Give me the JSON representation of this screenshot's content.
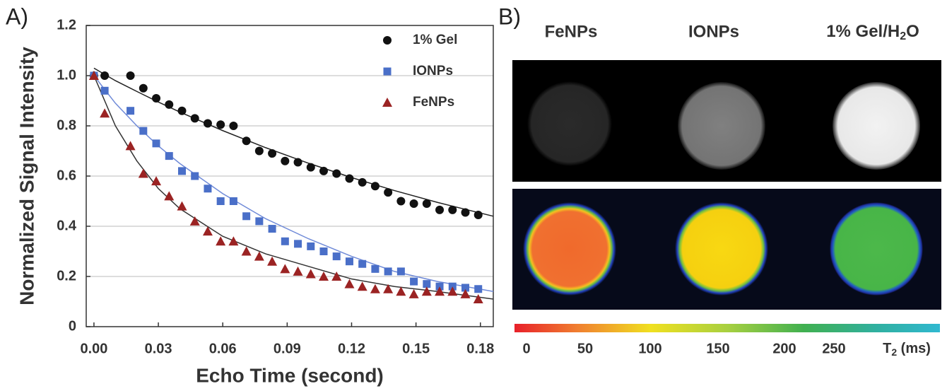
{
  "chart_data": {
    "type": "scatter",
    "panel_label": "A)",
    "xlabel": "Echo Time (second)",
    "ylabel": "Normalized Signal Intensity",
    "xlim": [
      -0.0036,
      0.186
    ],
    "ylim": [
      0,
      1.2
    ],
    "xticks": [
      {
        "value": 0,
        "label": "0.00"
      },
      {
        "value": 0.03,
        "label": "0.03"
      },
      {
        "value": 0.06,
        "label": "0.06"
      },
      {
        "value": 0.09,
        "label": "0.09"
      },
      {
        "value": 0.12,
        "label": "0.12"
      },
      {
        "value": 0.15,
        "label": "0.15"
      },
      {
        "value": 0.18,
        "label": "0.18"
      }
    ],
    "yticks": [
      0,
      0.2,
      0.4,
      0.6,
      0.8,
      {
        "value": 1,
        "label": "1.0"
      },
      1.2
    ],
    "grid": true,
    "legend": "upper right",
    "x": [
      0,
      0.005,
      0.017,
      0.023,
      0.029,
      0.035,
      0.041,
      0.047,
      0.053,
      0.059,
      0.065,
      0.071,
      0.077,
      0.083,
      0.089,
      0.095,
      0.101,
      0.107,
      0.113,
      0.119,
      0.125,
      0.131,
      0.137,
      0.143,
      0.149,
      0.155,
      0.161,
      0.167,
      0.173,
      0.179
    ],
    "fit_x": [
      0,
      0.01,
      0.02,
      0.03,
      0.04,
      0.06,
      0.08,
      0.1,
      0.12,
      0.14,
      0.16,
      0.186
    ],
    "series": [
      {
        "name": "1% Gel",
        "marker": "circle",
        "color": "#111111",
        "fit_color": "#222222",
        "values": [
          1.0,
          1.0,
          1.0,
          0.95,
          0.91,
          0.885,
          0.86,
          0.83,
          0.81,
          0.805,
          0.8,
          0.74,
          0.7,
          0.69,
          0.66,
          0.655,
          0.635,
          0.62,
          0.61,
          0.59,
          0.575,
          0.56,
          0.535,
          0.5,
          0.49,
          0.49,
          0.465,
          0.465,
          0.455,
          0.445
        ],
        "fit": [
          1.03,
          0.98,
          0.937,
          0.895,
          0.855,
          0.781,
          0.713,
          0.651,
          0.594,
          0.542,
          0.495,
          0.44
        ]
      },
      {
        "name": "IONPs",
        "marker": "square",
        "color": "#4a6fc8",
        "fit_color": "#6f8ad8",
        "values": [
          1.0,
          0.94,
          0.86,
          0.78,
          0.73,
          0.68,
          0.62,
          0.6,
          0.55,
          0.5,
          0.5,
          0.44,
          0.42,
          0.39,
          0.34,
          0.33,
          0.32,
          0.3,
          0.28,
          0.26,
          0.25,
          0.23,
          0.22,
          0.22,
          0.18,
          0.17,
          0.16,
          0.16,
          0.155,
          0.15
        ],
        "fit": [
          1.0,
          0.89,
          0.8,
          0.72,
          0.65,
          0.53,
          0.43,
          0.35,
          0.28,
          0.22,
          0.18,
          0.14
        ]
      },
      {
        "name": "FeNPs",
        "marker": "triangle",
        "color": "#9b2323",
        "fit_color": "#333333",
        "values": [
          1.0,
          0.85,
          0.72,
          0.61,
          0.58,
          0.52,
          0.48,
          0.42,
          0.38,
          0.34,
          0.34,
          0.3,
          0.28,
          0.26,
          0.23,
          0.22,
          0.21,
          0.2,
          0.2,
          0.17,
          0.16,
          0.15,
          0.15,
          0.14,
          0.13,
          0.14,
          0.14,
          0.14,
          0.13,
          0.11
        ],
        "fit": [
          1.0,
          0.8,
          0.66,
          0.55,
          0.47,
          0.36,
          0.29,
          0.24,
          0.19,
          0.16,
          0.14,
          0.11
        ]
      }
    ]
  },
  "panel_b": {
    "panel_label": "B)",
    "columns": [
      "FeNPs",
      "IONPs",
      [
        "1% Gel/H",
        "2",
        "O"
      ]
    ],
    "colorbar_ticks": [
      0,
      50,
      100,
      150,
      200,
      250
    ],
    "colorbar_unit": [
      "T",
      "2",
      " (ms)"
    ]
  }
}
